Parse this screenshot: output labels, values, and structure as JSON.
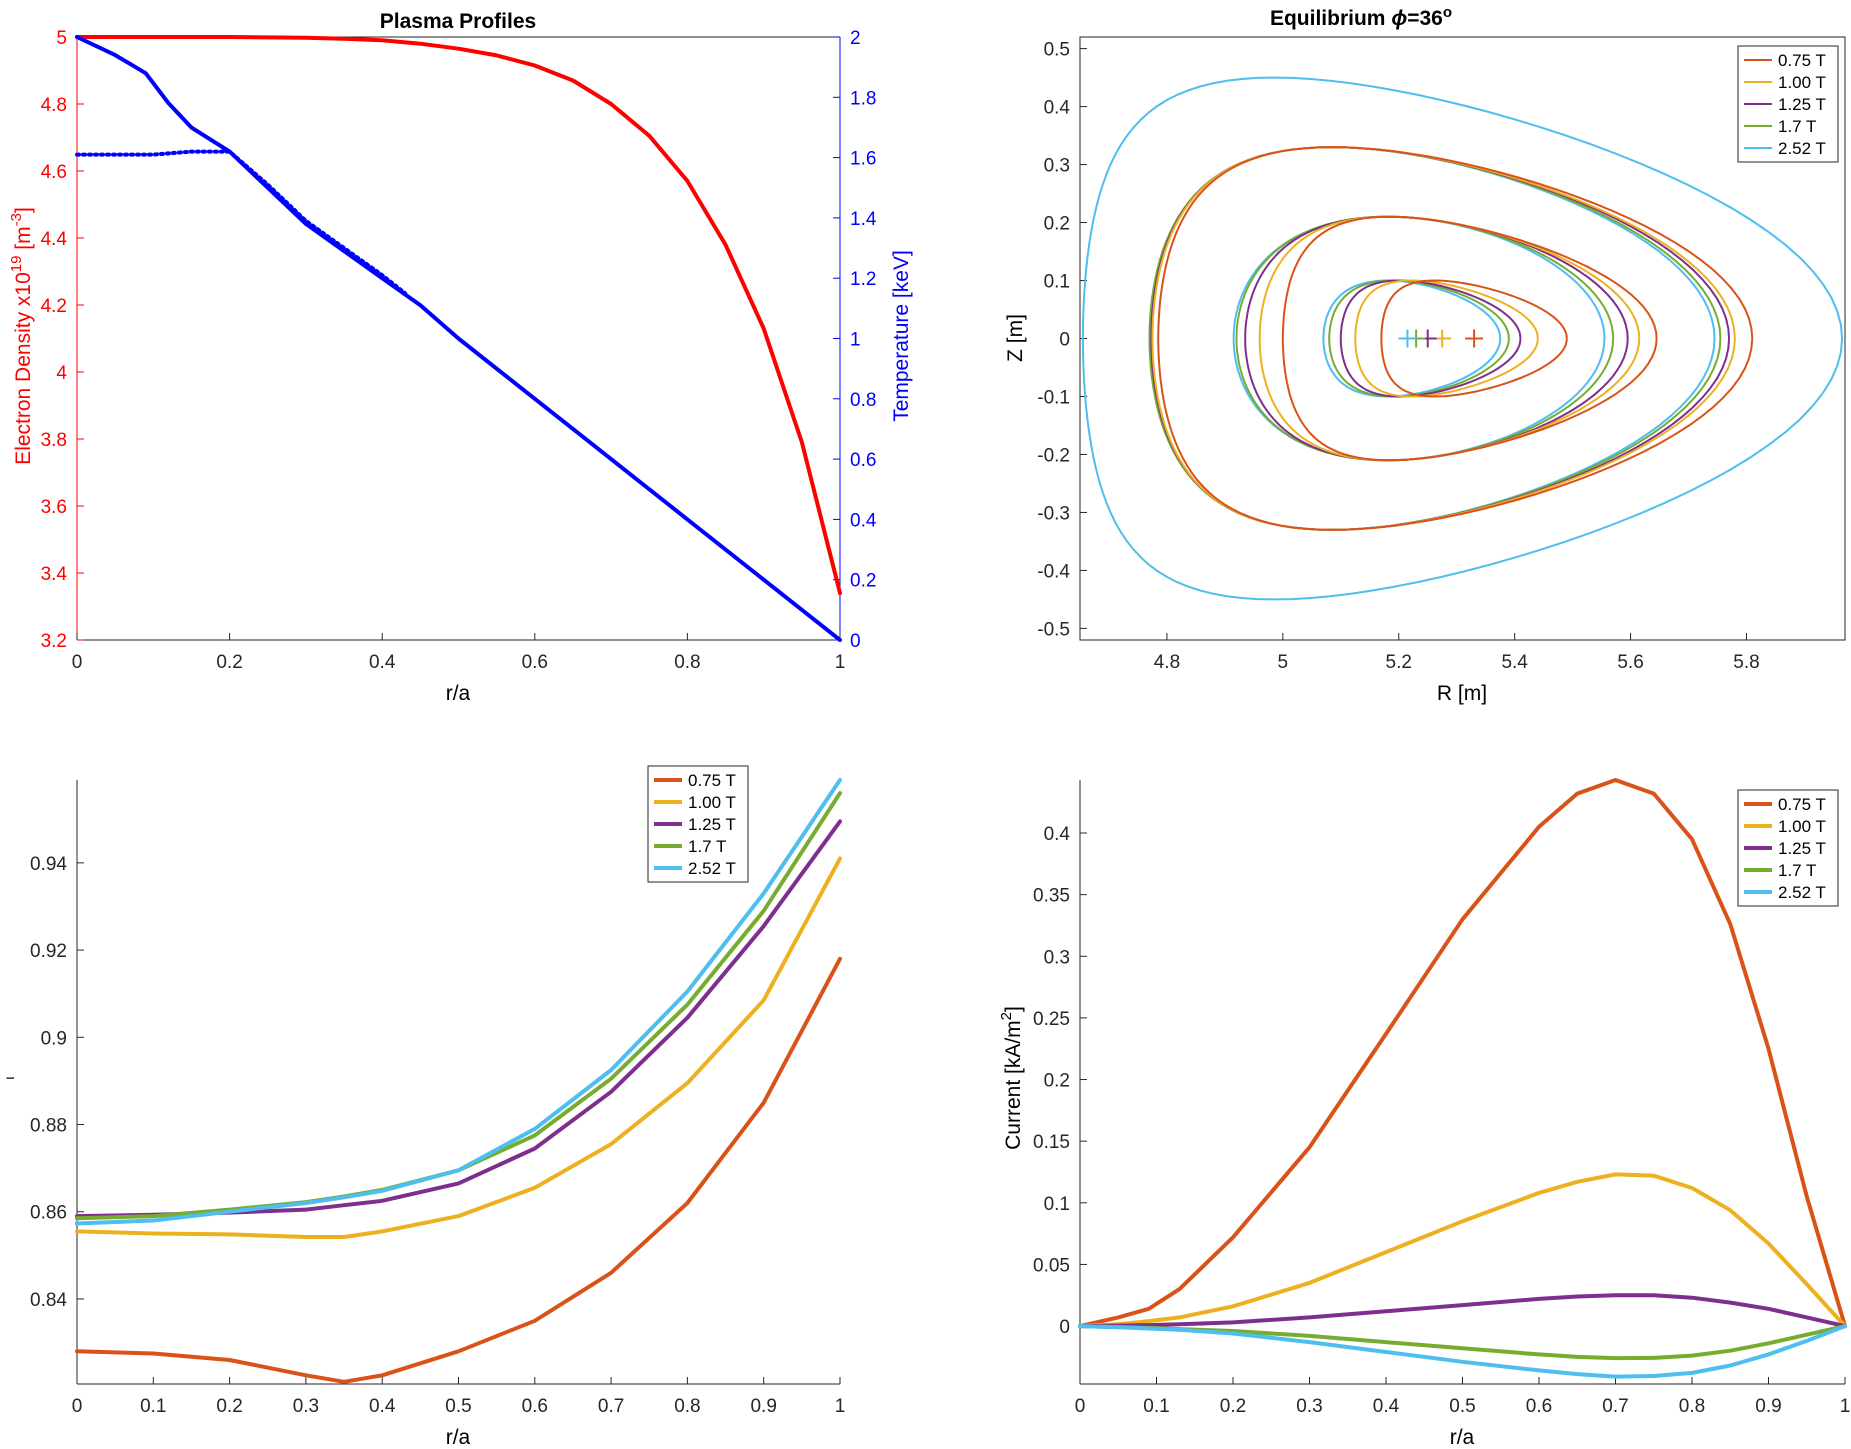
{
  "colors": {
    "c075": "#d95319",
    "c100": "#edb120",
    "c125": "#7e2f8e",
    "c17": "#77ac30",
    "c252": "#4dbeee",
    "density": "#ff0000",
    "temperature": "#0000ff",
    "axis": "#262626"
  },
  "chart_data": [
    {
      "id": "plasma-profiles",
      "type": "line",
      "title": "Plasma Profiles",
      "xlabel": "r/a",
      "ylabel_left": "Electron Density x10",
      "ylabel_left_exp": "19",
      "ylabel_left_unit_open": " [m",
      "ylabel_left_unit_exp": "-3",
      "ylabel_left_unit_close": "]",
      "ylabel_right": "Temperature [keV]",
      "xlim": [
        0,
        1
      ],
      "ylim_left": [
        3.2,
        5
      ],
      "ylim_right": [
        0,
        2
      ],
      "xticks": [
        "0",
        "0.2",
        "0.4",
        "0.6",
        "0.8",
        "1"
      ],
      "yticks_left": [
        "3.2",
        "3.4",
        "3.6",
        "3.8",
        "4",
        "4.2",
        "4.4",
        "4.6",
        "4.8",
        "5"
      ],
      "yticks_right": [
        "0",
        "0.2",
        "0.4",
        "0.6",
        "0.8",
        "1",
        "1.2",
        "1.4",
        "1.6",
        "1.8",
        "2"
      ],
      "series": [
        {
          "axis": "left",
          "style": "solid",
          "color": "density",
          "x": [
            0,
            0.1,
            0.2,
            0.3,
            0.35,
            0.4,
            0.45,
            0.5,
            0.55,
            0.6,
            0.65,
            0.7,
            0.75,
            0.8,
            0.85,
            0.9,
            0.95,
            1.0
          ],
          "y": [
            5.0,
            5.0,
            5.0,
            4.998,
            4.995,
            4.99,
            4.98,
            4.965,
            4.945,
            4.915,
            4.87,
            4.8,
            4.705,
            4.57,
            4.38,
            4.13,
            3.79,
            3.34
          ]
        },
        {
          "axis": "right",
          "style": "solid",
          "color": "temperature",
          "x": [
            0,
            0.05,
            0.09,
            0.12,
            0.15,
            0.2,
            0.25,
            0.3,
            0.35,
            0.4,
            0.45,
            0.5,
            0.6,
            0.7,
            0.8,
            0.9,
            1.0
          ],
          "y": [
            2.0,
            1.94,
            1.88,
            1.78,
            1.7,
            1.62,
            1.5,
            1.38,
            1.29,
            1.2,
            1.11,
            1.0,
            0.8,
            0.6,
            0.4,
            0.2,
            0.0
          ]
        },
        {
          "axis": "right",
          "style": "dotted",
          "color": "temperature",
          "x": [
            0,
            0.05,
            0.1,
            0.15,
            0.2,
            0.25,
            0.3,
            0.35,
            0.4,
            0.43
          ],
          "y": [
            1.61,
            1.61,
            1.61,
            1.62,
            1.62,
            1.51,
            1.39,
            1.3,
            1.21,
            1.15
          ]
        }
      ]
    },
    {
      "id": "equilibrium",
      "type": "line",
      "title": "Equilibrium ",
      "title_symbol": "ϕ",
      "title_value": "=36",
      "title_sup": "o",
      "xlabel": "R [m]",
      "ylabel": "Z [m]",
      "xlim": [
        4.65,
        5.97
      ],
      "ylim": [
        -0.52,
        0.52
      ],
      "xticks": [
        "4.8",
        "5",
        "5.2",
        "5.4",
        "5.6",
        "5.8"
      ],
      "yticks": [
        "-0.5",
        "-0.4",
        "-0.3",
        "-0.2",
        "-0.1",
        "0",
        "0.1",
        "0.2",
        "0.3",
        "0.4",
        "0.5"
      ],
      "legend": [
        "0.75 T",
        "1.00 T",
        "1.25 T",
        "1.7 T",
        "2.52 T"
      ],
      "legend_colors": [
        "c075",
        "c100",
        "c125",
        "c17",
        "c252"
      ],
      "axis_centers": [
        {
          "R": 5.33,
          "Z": 0,
          "color": "c075"
        },
        {
          "R": 5.275,
          "Z": 0,
          "color": "c100"
        },
        {
          "R": 5.25,
          "Z": 0,
          "color": "c125"
        },
        {
          "R": 5.23,
          "Z": 0,
          "color": "c17"
        },
        {
          "R": 5.215,
          "Z": 0,
          "color": "c252"
        }
      ],
      "surfaces": [
        {
          "color": "c252",
          "Rmin": 4.655,
          "Rmax": 5.965,
          "Rtop": 4.97,
          "Ztop": 0.45
        },
        {
          "color": "c252",
          "Rmin": 4.77,
          "Rmax": 5.745,
          "Rtop": 5.08,
          "Ztop": 0.33
        },
        {
          "color": "c17",
          "Rmin": 4.77,
          "Rmax": 5.755,
          "Rtop": 5.08,
          "Ztop": 0.33
        },
        {
          "color": "c125",
          "Rmin": 4.773,
          "Rmax": 5.77,
          "Rtop": 5.08,
          "Ztop": 0.33
        },
        {
          "color": "c100",
          "Rmin": 4.775,
          "Rmax": 5.78,
          "Rtop": 5.08,
          "Ztop": 0.33
        },
        {
          "color": "c075",
          "Rmin": 4.785,
          "Rmax": 5.81,
          "Rtop": 5.08,
          "Ztop": 0.33
        },
        {
          "color": "c252",
          "Rmin": 4.915,
          "Rmax": 5.555,
          "Rtop": 5.18,
          "Ztop": 0.21
        },
        {
          "color": "c17",
          "Rmin": 4.92,
          "Rmax": 5.57,
          "Rtop": 5.18,
          "Ztop": 0.21
        },
        {
          "color": "c125",
          "Rmin": 4.935,
          "Rmax": 5.595,
          "Rtop": 5.18,
          "Ztop": 0.21
        },
        {
          "color": "c100",
          "Rmin": 4.96,
          "Rmax": 5.615,
          "Rtop": 5.18,
          "Ztop": 0.21
        },
        {
          "color": "c075",
          "Rmin": 5.0,
          "Rmax": 5.645,
          "Rtop": 5.18,
          "Ztop": 0.21
        },
        {
          "color": "c252",
          "Rmin": 5.07,
          "Rmax": 5.375,
          "Rtop": 5.18,
          "Ztop": 0.1
        },
        {
          "color": "c17",
          "Rmin": 5.08,
          "Rmax": 5.39,
          "Rtop": 5.19,
          "Ztop": 0.1
        },
        {
          "color": "c125",
          "Rmin": 5.1,
          "Rmax": 5.41,
          "Rtop": 5.2,
          "Ztop": 0.1
        },
        {
          "color": "c100",
          "Rmin": 5.125,
          "Rmax": 5.44,
          "Rtop": 5.22,
          "Ztop": 0.1
        },
        {
          "color": "c075",
          "Rmin": 5.17,
          "Rmax": 5.49,
          "Rtop": 5.26,
          "Ztop": 0.1
        }
      ]
    },
    {
      "id": "iota",
      "type": "line",
      "title": "",
      "xlabel": "r/a",
      "ylabel": "ι",
      "xlim": [
        0,
        1
      ],
      "ylim": [
        0.8205,
        0.959
      ],
      "xticks": [
        "0",
        "0.1",
        "0.2",
        "0.3",
        "0.4",
        "0.5",
        "0.6",
        "0.7",
        "0.8",
        "0.9",
        "1"
      ],
      "yticks": [
        "0.84",
        "0.86",
        "0.88",
        "0.9",
        "0.92",
        "0.94"
      ],
      "ytick_values": [
        0.84,
        0.86,
        0.88,
        0.9,
        0.92,
        0.94
      ],
      "legend": [
        "0.75 T",
        "1.00 T",
        "1.25 T",
        "1.7 T",
        "2.52 T"
      ],
      "x": [
        0,
        0.1,
        0.2,
        0.3,
        0.35,
        0.4,
        0.5,
        0.6,
        0.7,
        0.8,
        0.9,
        1.0
      ],
      "series": [
        {
          "name": "0.75 T",
          "color": "c075",
          "values": [
            0.828,
            0.8275,
            0.826,
            0.8225,
            0.821,
            0.8225,
            0.828,
            0.835,
            0.846,
            0.862,
            0.885,
            0.918
          ]
        },
        {
          "name": "1.00 T",
          "color": "c100",
          "values": [
            0.8555,
            0.855,
            0.8548,
            0.8542,
            0.8542,
            0.8555,
            0.859,
            0.8655,
            0.8755,
            0.8895,
            0.9085,
            0.941
          ]
        },
        {
          "name": "1.25 T",
          "color": "c125",
          "values": [
            0.859,
            0.8593,
            0.8598,
            0.8605,
            0.8615,
            0.8625,
            0.8665,
            0.8745,
            0.8875,
            0.9045,
            0.9255,
            0.9495
          ]
        },
        {
          "name": "1.7 T",
          "color": "c17",
          "values": [
            0.8585,
            0.859,
            0.8605,
            0.8622,
            0.8635,
            0.865,
            0.8695,
            0.8775,
            0.8905,
            0.9075,
            0.929,
            0.956
          ]
        },
        {
          "name": "2.52 T",
          "color": "c252",
          "values": [
            0.8573,
            0.858,
            0.86,
            0.862,
            0.8633,
            0.8648,
            0.8695,
            0.879,
            0.8925,
            0.9105,
            0.933,
            0.959
          ]
        }
      ]
    },
    {
      "id": "current",
      "type": "line",
      "title": "",
      "xlabel": "r/a",
      "ylabel": "Current [kA/m",
      "ylabel_sup": "2",
      "ylabel_close": "]",
      "xlim": [
        0,
        1
      ],
      "ylim": [
        -0.047,
        0.443
      ],
      "xticks": [
        "0",
        "0.1",
        "0.2",
        "0.3",
        "0.4",
        "0.5",
        "0.6",
        "0.7",
        "0.8",
        "0.9",
        "1"
      ],
      "yticks": [
        "0",
        "0.05",
        "0.1",
        "0.15",
        "0.2",
        "0.25",
        "0.3",
        "0.35",
        "0.4"
      ],
      "ytick_values": [
        0,
        0.05,
        0.1,
        0.15,
        0.2,
        0.25,
        0.3,
        0.35,
        0.4
      ],
      "legend": [
        "0.75 T",
        "1.00 T",
        "1.25 T",
        "1.7 T",
        "2.52 T"
      ],
      "x": [
        0,
        0.05,
        0.09,
        0.13,
        0.2,
        0.3,
        0.4,
        0.5,
        0.6,
        0.65,
        0.7,
        0.75,
        0.8,
        0.85,
        0.9,
        0.95,
        1.0
      ],
      "series": [
        {
          "name": "0.75 T",
          "color": "c075",
          "values": [
            0,
            0.007,
            0.014,
            0.03,
            0.072,
            0.145,
            0.237,
            0.33,
            0.405,
            0.432,
            0.443,
            0.432,
            0.395,
            0.326,
            0.225,
            0.105,
            0.0
          ]
        },
        {
          "name": "1.00 T",
          "color": "c100",
          "values": [
            0,
            0.0015,
            0.004,
            0.007,
            0.016,
            0.035,
            0.06,
            0.085,
            0.108,
            0.117,
            0.123,
            0.122,
            0.112,
            0.094,
            0.067,
            0.034,
            0.0
          ]
        },
        {
          "name": "1.25 T",
          "color": "c125",
          "values": [
            0,
            0.0004,
            0.0008,
            0.0015,
            0.003,
            0.007,
            0.012,
            0.017,
            0.022,
            0.024,
            0.025,
            0.025,
            0.023,
            0.019,
            0.014,
            0.007,
            0.0
          ]
        },
        {
          "name": "1.7 T",
          "color": "c17",
          "values": [
            0,
            -0.0008,
            -0.0015,
            -0.0025,
            -0.004,
            -0.008,
            -0.013,
            -0.018,
            -0.023,
            -0.025,
            -0.026,
            -0.0258,
            -0.024,
            -0.02,
            -0.014,
            -0.007,
            0.0
          ]
        },
        {
          "name": "2.52 T",
          "color": "c252",
          "values": [
            0,
            -0.001,
            -0.002,
            -0.003,
            -0.006,
            -0.013,
            -0.021,
            -0.029,
            -0.036,
            -0.039,
            -0.041,
            -0.0405,
            -0.038,
            -0.032,
            -0.023,
            -0.012,
            0.0
          ]
        }
      ]
    }
  ]
}
